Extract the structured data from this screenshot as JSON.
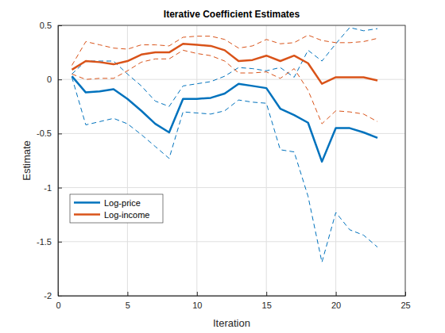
{
  "chart_data": {
    "type": "line",
    "title": "Iterative Coefficient Estimates",
    "x_label": "Iteration",
    "y_label": "Estimate",
    "x": [
      1,
      2,
      3,
      4,
      5,
      6,
      7,
      8,
      9,
      10,
      11,
      12,
      13,
      14,
      15,
      16,
      17,
      18,
      19,
      20,
      21,
      22,
      23
    ],
    "series": [
      {
        "name": "Log-price",
        "color": "#0072bd",
        "values": [
          0.03,
          -0.12,
          -0.11,
          -0.09,
          -0.18,
          -0.29,
          -0.41,
          -0.49,
          -0.18,
          -0.18,
          -0.17,
          -0.13,
          -0.04,
          -0.06,
          -0.08,
          -0.27,
          -0.33,
          -0.4,
          -0.76,
          -0.45,
          -0.45,
          -0.49,
          -0.54
        ],
        "lower": [
          0.02,
          -0.42,
          -0.39,
          -0.36,
          -0.41,
          -0.51,
          -0.62,
          -0.73,
          -0.3,
          -0.31,
          -0.32,
          -0.29,
          -0.19,
          -0.21,
          -0.22,
          -0.65,
          -0.67,
          -1.08,
          -1.69,
          -1.23,
          -1.39,
          -1.44,
          -1.55
        ],
        "upper": [
          0.05,
          0.17,
          0.17,
          0.17,
          0.05,
          -0.06,
          -0.2,
          -0.25,
          -0.06,
          -0.04,
          -0.02,
          0.03,
          0.11,
          0.1,
          0.08,
          0.11,
          0.02,
          0.27,
          0.17,
          0.33,
          0.48,
          0.45,
          0.47
        ]
      },
      {
        "name": "Log-income",
        "color": "#d95319",
        "values": [
          0.09,
          0.17,
          0.16,
          0.14,
          0.17,
          0.23,
          0.25,
          0.25,
          0.33,
          0.32,
          0.31,
          0.27,
          0.17,
          0.18,
          0.22,
          0.17,
          0.22,
          0.15,
          -0.04,
          0.02,
          0.02,
          0.02,
          -0.01
        ],
        "lower": [
          0.05,
          0.0,
          0.01,
          0.01,
          0.08,
          0.16,
          0.19,
          0.19,
          0.27,
          0.24,
          0.22,
          0.17,
          0.06,
          0.06,
          0.07,
          0.01,
          0.1,
          -0.1,
          -0.41,
          -0.29,
          -0.3,
          -0.32,
          -0.39
        ],
        "upper": [
          0.13,
          0.35,
          0.32,
          0.29,
          0.28,
          0.32,
          0.32,
          0.31,
          0.39,
          0.4,
          0.4,
          0.37,
          0.29,
          0.31,
          0.37,
          0.33,
          0.34,
          0.41,
          0.36,
          0.34,
          0.34,
          0.35,
          0.38
        ]
      }
    ],
    "xlim": [
      0,
      25
    ],
    "xticks": [
      0,
      5,
      10,
      15,
      20,
      25
    ],
    "ylim": [
      -2,
      0.5
    ],
    "yticks": [
      -2,
      -1.5,
      -1,
      -0.5,
      0,
      0.5
    ],
    "grid": true,
    "legend": "lower-left"
  }
}
